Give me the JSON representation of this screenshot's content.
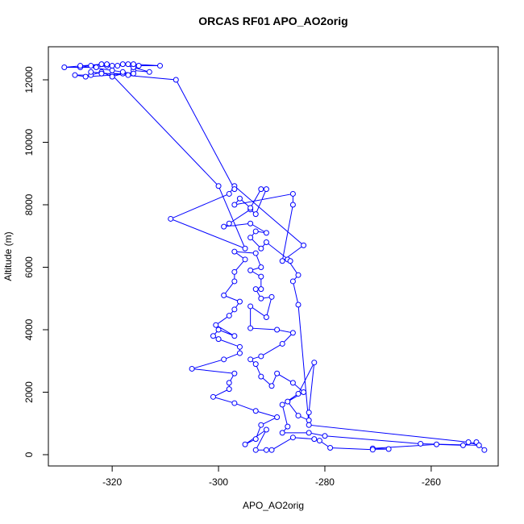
{
  "chart_data": {
    "type": "line",
    "title": "ORCAS RF01 APO_AO2orig",
    "xlabel": "APO_AO2orig",
    "ylabel": "Altitude (m)",
    "xlim": [
      -332,
      -247.4
    ],
    "ylim": [
      -361,
      13058
    ],
    "xticks": [
      -320,
      -300,
      -280,
      -260
    ],
    "yticks": [
      0,
      2000,
      4000,
      6000,
      8000,
      10000,
      12000
    ],
    "series": [
      {
        "color": "#0000ff",
        "x": [
          -250,
          -251.5,
          -254,
          -259,
          -271,
          -268,
          -271,
          -279,
          -281,
          -282,
          -286,
          -290,
          -291,
          -293,
          -291,
          -295,
          -293,
          -292,
          -289,
          -293,
          -297,
          -301,
          -298,
          -298,
          -297,
          -305,
          -299,
          -296,
          -296,
          -300,
          -301,
          -300,
          -297,
          -300.5,
          -298,
          -297,
          -296,
          -299,
          -297,
          -297,
          -295,
          -297,
          -293,
          -292,
          -294,
          -292,
          -292,
          -293,
          -292,
          -290,
          -291,
          -294,
          -294,
          -289,
          -286,
          -288,
          -292,
          -294,
          -293,
          -292,
          -290,
          -289,
          -286,
          -284,
          -287,
          -285,
          -283,
          -283,
          -282,
          -285,
          -288,
          -287,
          -288,
          -283,
          -280,
          -262,
          -251,
          -253,
          -283,
          -285,
          -286,
          -285,
          -287,
          -286.5,
          -291,
          -292,
          -294,
          -293,
          -291,
          -294,
          -299,
          -298,
          -294,
          -293,
          -291,
          -292,
          -294,
          -296,
          -297,
          -286,
          -286,
          -288,
          -284,
          -297,
          -298,
          -309,
          -295,
          -300,
          -320,
          -325,
          -327,
          -324,
          -322,
          -320,
          -318,
          -317,
          -316,
          -313,
          -316,
          -318,
          -321,
          -323,
          -326,
          -329,
          -322,
          -320,
          -317,
          -315,
          -311,
          -316,
          -319,
          -321,
          -324,
          -326,
          -320,
          -318,
          -316,
          -322,
          -324,
          -308,
          -297
        ],
        "values": [
          150,
          400,
          300,
          330,
          200,
          180,
          160,
          220,
          450,
          500,
          550,
          150,
          150,
          150,
          800,
          330,
          500,
          950,
          1200,
          1400,
          1650,
          1850,
          2100,
          2300,
          2600,
          2750,
          3050,
          3250,
          3450,
          3700,
          3800,
          4000,
          3800,
          4150,
          4450,
          4650,
          4900,
          5100,
          5550,
          5850,
          6250,
          6500,
          6450,
          6000,
          5900,
          5700,
          5300,
          5300,
          5000,
          5050,
          4400,
          4750,
          4050,
          4000,
          3900,
          3550,
          3150,
          3050,
          2900,
          2500,
          2200,
          2600,
          2300,
          2000,
          1700,
          1250,
          1100,
          1350,
          2950,
          1950,
          1600,
          900,
          700,
          700,
          600,
          350,
          300,
          400,
          950,
          4800,
          5550,
          5750,
          6250,
          6200,
          6800,
          6600,
          6950,
          7150,
          7100,
          7400,
          7300,
          7400,
          7850,
          7700,
          8500,
          8500,
          7900,
          8200,
          8000,
          8350,
          8000,
          6200,
          6700,
          8600,
          8350,
          7550,
          6600,
          8600,
          12150,
          12100,
          12150,
          12150,
          12250,
          12100,
          12200,
          12150,
          12300,
          12250,
          12400,
          12500,
          12450,
          12400,
          12400,
          12400,
          12500,
          12450,
          12500,
          12450,
          12450,
          12500,
          12450,
          12500,
          12450,
          12450,
          12300,
          12250,
          12200,
          12200,
          12250,
          12000,
          8500
        ]
      }
    ]
  }
}
